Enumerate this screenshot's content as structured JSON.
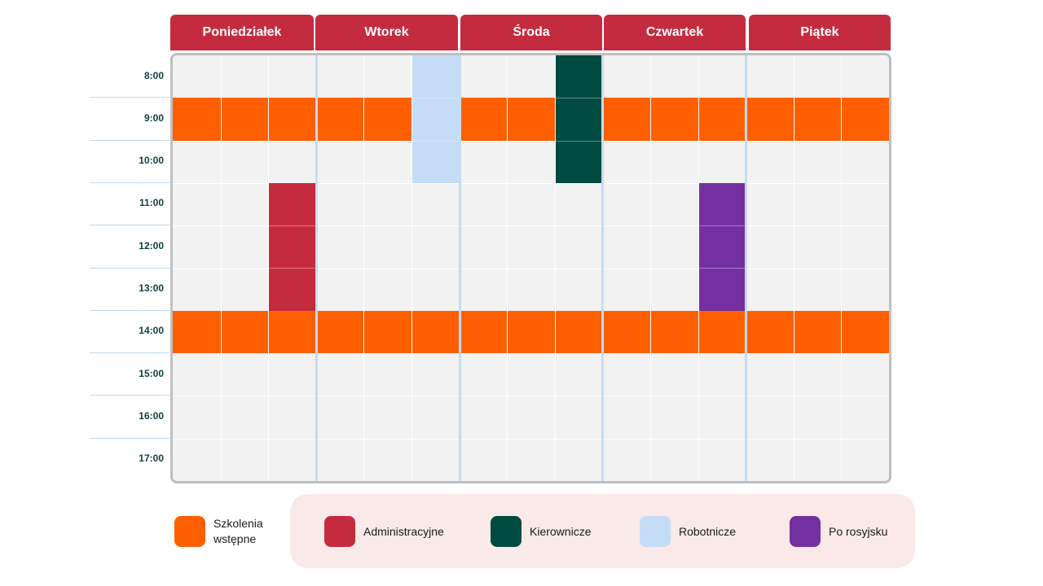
{
  "schedule": {
    "days": [
      "Poniedziałek",
      "Wtorek",
      "Środa",
      "Czwartek",
      "Piątek"
    ],
    "times": [
      "8:00",
      "9:00",
      "10:00",
      "11:00",
      "12:00",
      "13:00",
      "14:00",
      "15:00",
      "16:00",
      "17:00"
    ],
    "columns_per_day": 3,
    "header_color": "#c52b3e",
    "blocks": [
      {
        "category": "szkolenia",
        "day": 0,
        "col_start": 0,
        "col_span": 15,
        "time_start": 1,
        "time_span": 1
      },
      {
        "category": "szkolenia",
        "day": 0,
        "col_start": 0,
        "col_span": 15,
        "time_start": 6,
        "time_span": 1
      },
      {
        "category": "robotnicze",
        "day": 1,
        "col_start": 2,
        "col_span": 1,
        "time_start": 0,
        "time_span": 3
      },
      {
        "category": "kierownicze",
        "day": 2,
        "col_start": 2,
        "col_span": 1,
        "time_start": 0,
        "time_span": 3
      },
      {
        "category": "administracyjne",
        "day": 0,
        "col_start": 2,
        "col_span": 1,
        "time_start": 3,
        "time_span": 3
      },
      {
        "category": "po_rosyjsku",
        "day": 3,
        "col_start": 2,
        "col_span": 1,
        "time_start": 3,
        "time_span": 3
      }
    ]
  },
  "legend": [
    {
      "key": "szkolenia",
      "label": "Szkolenia\nwstępne",
      "color": "#ff5f00",
      "swatch-icon": "orange-square"
    },
    {
      "key": "administracyjne",
      "label": "Administracyjne",
      "color": "#c52b3e",
      "swatch-icon": "red-square"
    },
    {
      "key": "kierownicze",
      "label": "Kierownicze",
      "color": "#004a40",
      "swatch-icon": "dark-green-square"
    },
    {
      "key": "robotnicze",
      "label": "Robotnicze",
      "color": "#c4dcf5",
      "swatch-icon": "light-blue-square"
    },
    {
      "key": "po_rosyjsku",
      "label": "Po rosyjsku",
      "color": "#7430a0",
      "swatch-icon": "purple-square"
    }
  ]
}
